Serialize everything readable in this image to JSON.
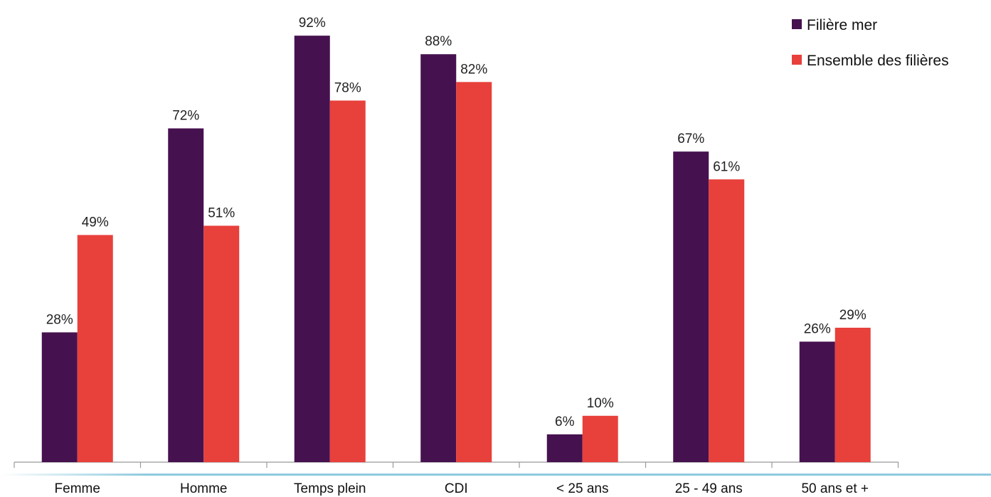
{
  "chart_data": {
    "type": "bar",
    "categories": [
      "Femme",
      "Homme",
      "Temps plein",
      "CDI",
      "< 25 ans",
      "25 - 49 ans",
      "50 ans et +"
    ],
    "series": [
      {
        "name": "Filière mer",
        "color": "#46114f",
        "values": [
          28,
          72,
          92,
          88,
          6,
          67,
          26
        ],
        "labels": [
          "28%",
          "72%",
          "92%",
          "88%",
          "6%",
          "67%",
          "26%"
        ]
      },
      {
        "name": "Ensemble des filières",
        "color": "#e8403b",
        "values": [
          49,
          51,
          78,
          82,
          10,
          61,
          29
        ],
        "labels": [
          "49%",
          "51%",
          "78%",
          "82%",
          "10%",
          "61%",
          "29%"
        ]
      }
    ],
    "ylim": [
      0,
      100
    ],
    "unit": "%",
    "grid": false,
    "legend_position": "top-right",
    "xlabel": "",
    "ylabel": ""
  }
}
